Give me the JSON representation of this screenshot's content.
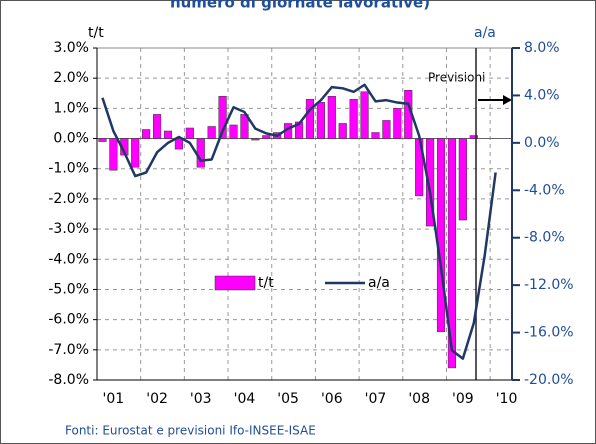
{
  "chart_data": {
    "type": "bar",
    "title": "numero di giornate lavorative)",
    "ylabel": "t/t",
    "y2label": "a/a",
    "annotation": "Previsioni",
    "source": "Fonti: Eurostat e previsioni Ifo-INSEE-ISAE",
    "categories": [
      null,
      "'01",
      null,
      null,
      null,
      "'02",
      null,
      null,
      null,
      "'03",
      null,
      null,
      null,
      "'04",
      null,
      null,
      null,
      "'05",
      null,
      null,
      null,
      "'06",
      null,
      null,
      null,
      "'07",
      null,
      null,
      null,
      "'08",
      null,
      null,
      null,
      "'09",
      null,
      null,
      null,
      "'10"
    ],
    "series": [
      {
        "name": "t/t",
        "type": "bar",
        "color": "#ff00ff",
        "values": [
          -0.1,
          -1.05,
          -0.55,
          -0.95,
          0.3,
          0.8,
          0.25,
          -0.35,
          0.35,
          -0.95,
          0.4,
          1.4,
          0.45,
          0.8,
          -0.05,
          0.1,
          0.2,
          0.5,
          0.55,
          1.3,
          1.2,
          1.4,
          0.5,
          1.3,
          1.55,
          0.2,
          0.6,
          1.0,
          1.6,
          -1.9,
          -2.9,
          -6.4,
          -7.6,
          -2.7,
          0.1,
          null,
          null,
          null
        ]
      },
      {
        "name": "a/a",
        "type": "line",
        "color": "#1f3864",
        "axis": "y2",
        "values": [
          3.8,
          1.0,
          -0.8,
          -2.8,
          -2.5,
          -0.8,
          0.0,
          0.5,
          0.0,
          -1.5,
          -1.4,
          1.0,
          3.0,
          2.6,
          1.2,
          0.8,
          0.6,
          1.2,
          1.6,
          2.8,
          3.6,
          4.7,
          4.6,
          4.3,
          4.9,
          3.5,
          3.6,
          3.4,
          3.3,
          0.6,
          -4.2,
          -10.5,
          -17.5,
          -18.2,
          -15.2,
          -9.5,
          -2.5,
          null
        ]
      }
    ],
    "ylim": [
      -8,
      3
    ],
    "yticks": [
      {
        "value": 3,
        "label": "3.0%"
      },
      {
        "value": 2,
        "label": "2.0%"
      },
      {
        "value": 1,
        "label": "1.0%"
      },
      {
        "value": 0,
        "label": "0.0%"
      },
      {
        "value": -1,
        "label": "-1.0%"
      },
      {
        "value": -2,
        "label": "-2.0%"
      },
      {
        "value": -3,
        "label": "-3.0%"
      },
      {
        "value": -4,
        "label": "-4.0%"
      },
      {
        "value": -5,
        "label": "-5.0%"
      },
      {
        "value": -6,
        "label": "-6.0%"
      },
      {
        "value": -7,
        "label": "-7.0%"
      },
      {
        "value": -8,
        "label": "-8.0%"
      }
    ],
    "y2lim": [
      -20,
      8
    ],
    "y2ticks": [
      {
        "value": 8,
        "label": "8.0%"
      },
      {
        "value": 4,
        "label": "4.0%"
      },
      {
        "value": 0,
        "label": "0.0%"
      },
      {
        "value": -4,
        "label": "-4.0%"
      },
      {
        "value": -8,
        "label": "-8.0%"
      },
      {
        "value": -12,
        "label": "-12.0%"
      },
      {
        "value": -16,
        "label": "-16.0%"
      },
      {
        "value": -20,
        "label": "-20.0%"
      }
    ],
    "grid": true,
    "legend": "center"
  }
}
